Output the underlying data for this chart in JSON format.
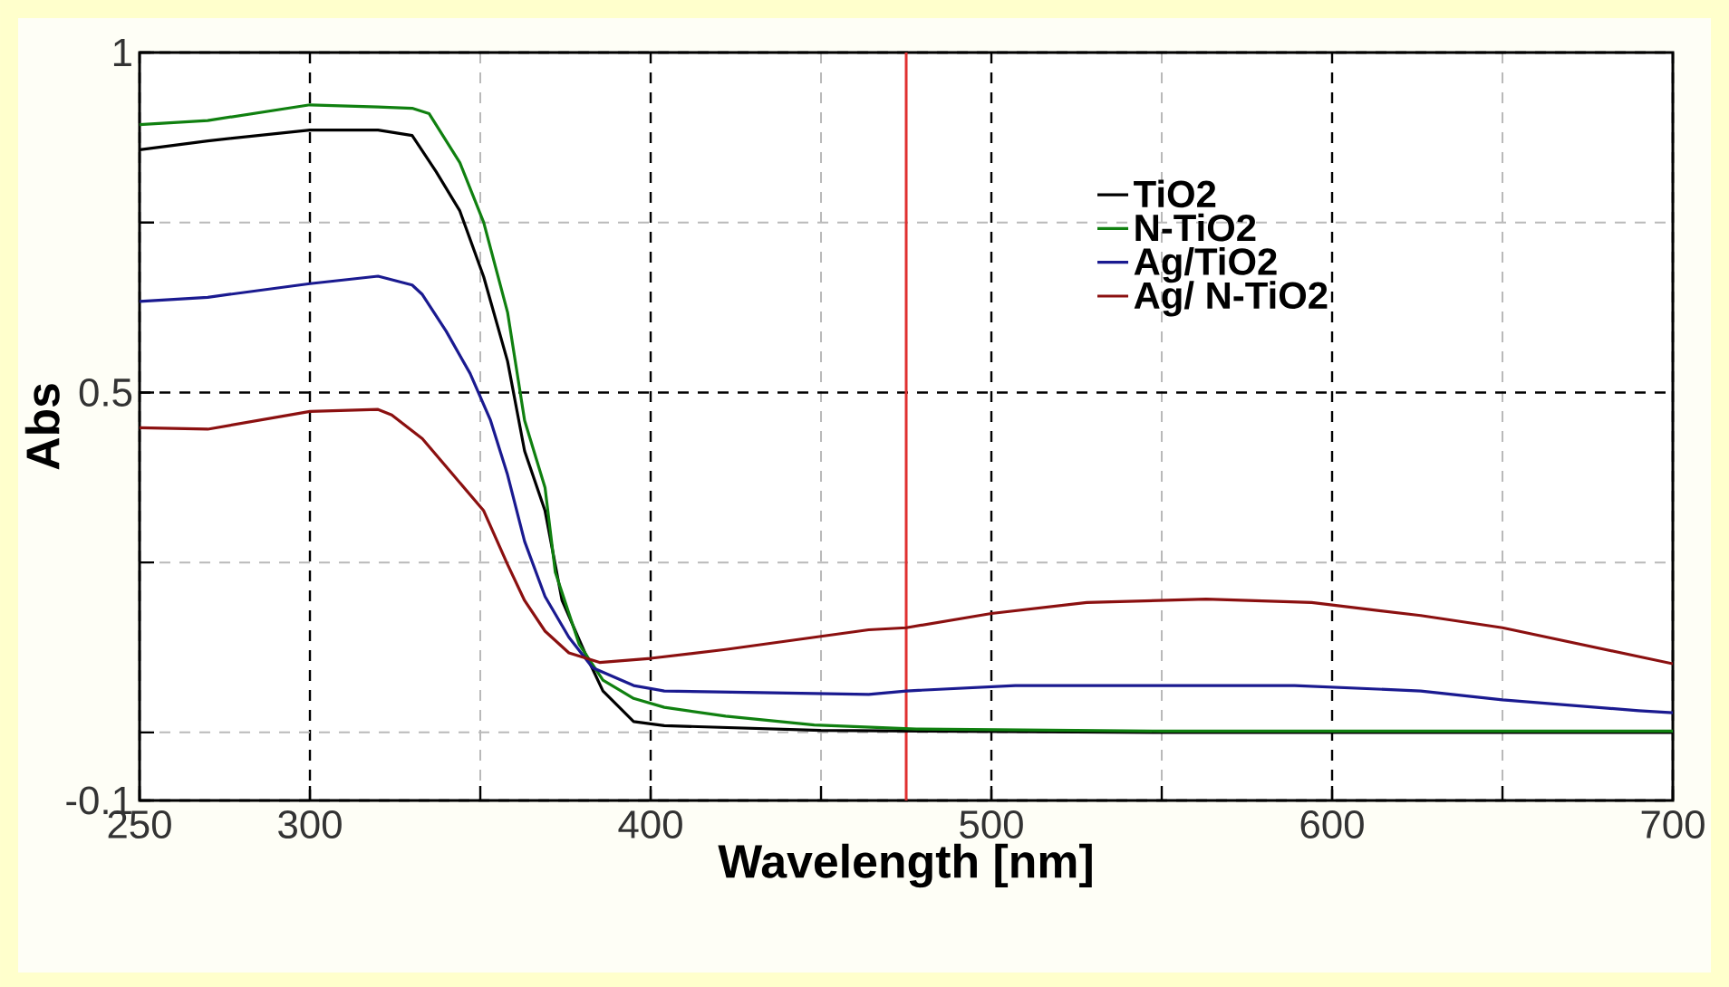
{
  "chart_data": {
    "type": "line",
    "xlabel": "Wavelength [nm]",
    "ylabel": "Abs",
    "xlim": [
      250,
      700
    ],
    "ylim": [
      -0.1,
      1
    ],
    "xticks": [
      250,
      300,
      {
        "value": 350,
        "label": null
      },
      400,
      {
        "value": 450,
        "label": null
      },
      500,
      {
        "value": 550,
        "label": null
      },
      600,
      {
        "value": 650,
        "label": null
      },
      700
    ],
    "yticks": [
      -0.1,
      {
        "value": 0,
        "label": null
      },
      {
        "value": 0.25,
        "label": null
      },
      0.5,
      {
        "value": 0.75,
        "label": null
      },
      1
    ],
    "grid": true,
    "legend": "right",
    "line_style": "solid",
    "marker": "none",
    "ref_lines": [
      {
        "axis": "x",
        "value": 475,
        "color": "#e03030"
      }
    ],
    "series": [
      {
        "name": "TiO2",
        "color": "#000000",
        "x": [
          250,
          270,
          300,
          320,
          330,
          337,
          344,
          351,
          358,
          363,
          369,
          374,
          381,
          386,
          395,
          404,
          450,
          550,
          650,
          700
        ],
        "values": [
          0.857,
          0.87,
          0.886,
          0.886,
          0.878,
          0.825,
          0.767,
          0.67,
          0.546,
          0.414,
          0.326,
          0.194,
          0.114,
          0.061,
          0.016,
          0.01,
          0.003,
          0.0,
          0.0,
          0.0
        ]
      },
      {
        "name": "N-TiO2",
        "color": "#108010",
        "x": [
          250,
          270,
          300,
          320,
          330,
          335,
          344,
          351,
          358,
          363,
          369,
          372,
          379,
          386,
          395,
          404,
          422,
          448,
          478,
          550,
          650,
          700
        ],
        "values": [
          0.894,
          0.9,
          0.923,
          0.92,
          0.918,
          0.91,
          0.838,
          0.75,
          0.618,
          0.459,
          0.36,
          0.236,
          0.13,
          0.077,
          0.05,
          0.037,
          0.024,
          0.011,
          0.005,
          0.002,
          0.002,
          0.002
        ]
      },
      {
        "name": "Ag/TiO2",
        "color": "#1a1a90",
        "x": [
          250,
          270,
          300,
          320,
          330,
          333,
          340,
          347,
          353,
          358,
          363,
          369,
          376,
          383,
          395,
          404,
          464,
          475,
          507,
          589,
          626,
          650,
          690,
          700
        ],
        "values": [
          0.634,
          0.64,
          0.66,
          0.671,
          0.658,
          0.644,
          0.59,
          0.528,
          0.459,
          0.379,
          0.281,
          0.2,
          0.14,
          0.095,
          0.069,
          0.061,
          0.056,
          0.061,
          0.069,
          0.069,
          0.061,
          0.048,
          0.032,
          0.029
        ]
      },
      {
        "name": "Ag/ N-TiO2",
        "color": "#8b1010",
        "x": [
          250,
          270,
          300,
          320,
          324,
          333,
          342,
          351,
          358,
          363,
          369,
          376,
          385,
          400,
          422,
          464,
          475,
          500,
          528,
          563,
          594,
          626,
          650,
          700
        ],
        "values": [
          0.448,
          0.446,
          0.472,
          0.475,
          0.467,
          0.432,
          0.379,
          0.326,
          0.247,
          0.194,
          0.149,
          0.117,
          0.103,
          0.109,
          0.122,
          0.151,
          0.154,
          0.175,
          0.191,
          0.196,
          0.191,
          0.172,
          0.154,
          0.101
        ]
      }
    ]
  }
}
